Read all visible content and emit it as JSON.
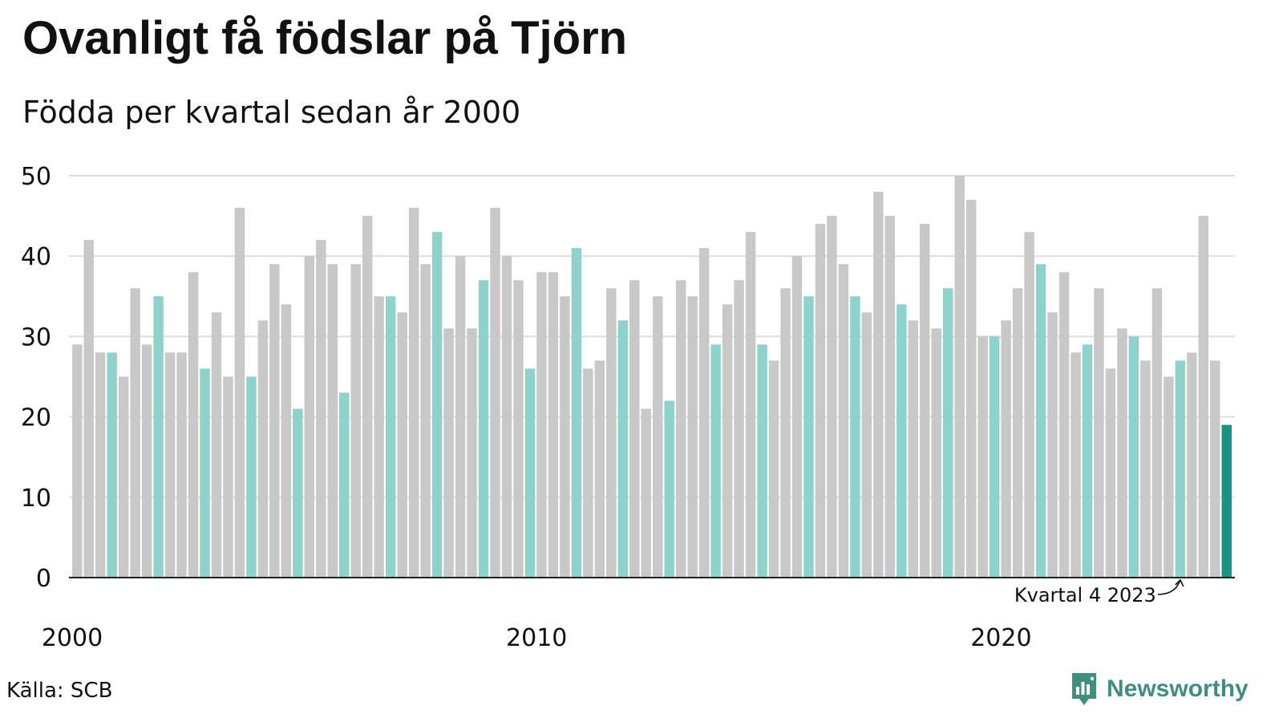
{
  "title": "Ovanligt få födslar på Tjörn",
  "subtitle": "Födda per kvartal sedan år 2000",
  "source": "Källa: SCB",
  "brand": {
    "name": "Newsworthy",
    "icon": "newsworthy-logo-icon",
    "color": "#3f8f7f"
  },
  "colors": {
    "bar_default": "#c8c8c8",
    "bar_quarter4": "#8dd3cb",
    "bar_highlight": "#1a9482",
    "gridline": "#dddddd",
    "axis": "#222222"
  },
  "chart_data": {
    "type": "bar",
    "title": "Ovanligt få födslar på Tjörn",
    "subtitle": "Födda per kvartal sedan år 2000",
    "xlabel": "",
    "ylabel": "",
    "ylim": [
      0,
      50
    ],
    "yticks": [
      0,
      10,
      20,
      30,
      40,
      50
    ],
    "x_tick_labels": [
      {
        "label": "2000",
        "index": 0
      },
      {
        "label": "2010",
        "index": 40
      },
      {
        "label": "2020",
        "index": 80
      }
    ],
    "grid": true,
    "legend": "none",
    "start_year": 2000,
    "values": [
      29,
      42,
      28,
      28,
      25,
      36,
      29,
      35,
      28,
      28,
      38,
      26,
      33,
      25,
      46,
      25,
      32,
      39,
      34,
      21,
      40,
      42,
      39,
      23,
      39,
      45,
      35,
      35,
      33,
      46,
      39,
      43,
      31,
      40,
      31,
      37,
      46,
      40,
      37,
      26,
      38,
      38,
      35,
      41,
      26,
      27,
      36,
      32,
      37,
      21,
      35,
      22,
      37,
      35,
      41,
      29,
      34,
      37,
      43,
      29,
      27,
      36,
      40,
      35,
      44,
      45,
      39,
      35,
      33,
      48,
      45,
      34,
      32,
      44,
      31,
      36,
      50,
      47,
      30,
      30,
      32,
      36,
      43,
      39,
      33,
      38,
      28,
      29,
      36,
      26,
      31,
      30,
      27,
      36,
      25,
      27,
      28,
      45,
      27,
      19
    ],
    "quarter4_color_rule": "every 4th quarter",
    "annotation": {
      "text": "Kvartal 4 2023",
      "bar_index": 95
    }
  }
}
